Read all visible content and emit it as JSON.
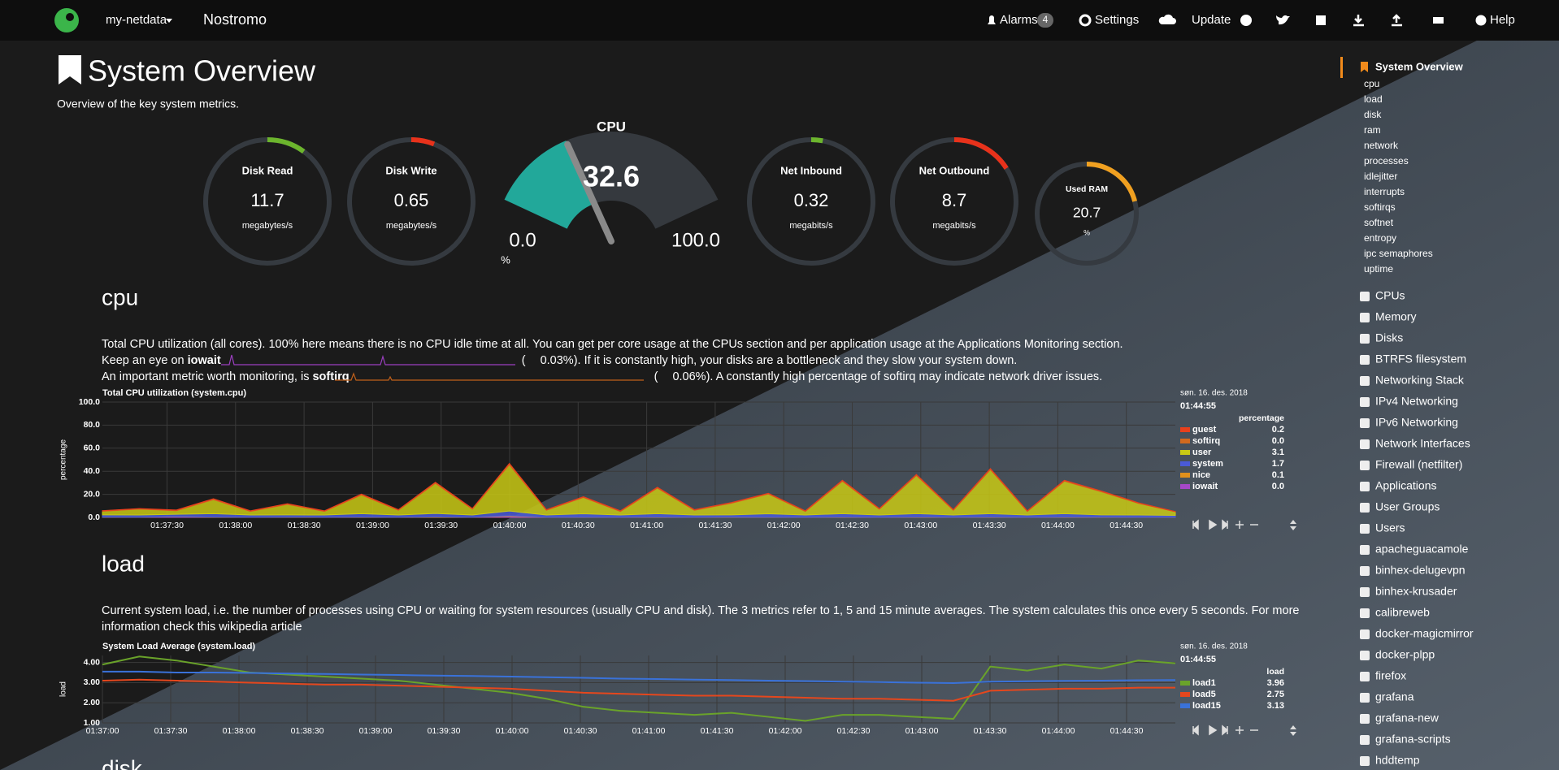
{
  "nav": {
    "brand": "my-netdata",
    "host": "Nostromo",
    "alarms": "Alarms",
    "alarm_count": "4",
    "settings": "Settings",
    "update": "Update",
    "help": "Help"
  },
  "header": {
    "title": "System Overview",
    "subtitle": "Overview of the key system metrics."
  },
  "gauges": [
    {
      "title": "Disk Read",
      "value": "11.7",
      "unit": "megabytes/s"
    },
    {
      "title": "Disk Write",
      "value": "0.65",
      "unit": "megabytes/s"
    },
    {
      "title": "Net Inbound",
      "value": "0.32",
      "unit": "megabits/s"
    },
    {
      "title": "Net Outbound",
      "value": "8.7",
      "unit": "megabits/s"
    },
    {
      "title": "Used RAM",
      "value": "20.7",
      "unit": "%"
    }
  ],
  "cpu_gauge": {
    "title": "CPU",
    "value": 32.6,
    "min": {
      "value": 0,
      "label": "0.0"
    },
    "max": {
      "value": 100,
      "label": "100.0"
    },
    "unit": "%"
  },
  "cpu_section": {
    "heading": "cpu",
    "line1": "Total CPU utilization (all cores). 100% here means there is no CPU idle time at all. You can get per core usage at the CPUs section and per application usage at the Applications Monitoring section.",
    "line2": {
      "pre": "Keep an eye on ",
      "key": "iowait",
      "open": "(",
      "value": "0.03%",
      "post": "). If it is constantly high, your disks are a bottleneck and they slow your system down."
    },
    "line3": {
      "pre": "An important metric worth monitoring, is ",
      "key": "softirq",
      "open": "(",
      "value": "0.06%",
      "post": "). A constantly high percentage of softirq may indicate network driver issues."
    }
  },
  "cpu_chart": {
    "type": "stacked-area",
    "title": "Total CPU utilization (system.cpu)",
    "ylabel": "percentage",
    "date": "søn. 16. des. 2018",
    "time": "01:44:55",
    "units": "percentage",
    "ylim": [
      0,
      100
    ],
    "yticks": [
      {
        "value": 0,
        "label": "0.0"
      },
      {
        "value": 20,
        "label": "20.0"
      },
      {
        "value": 40,
        "label": "40.0"
      },
      {
        "value": 60,
        "label": "60.0"
      },
      {
        "value": 80,
        "label": "80.0"
      },
      {
        "value": 100,
        "label": "100.0"
      }
    ],
    "xticks": [
      "01:37:30",
      "01:38:00",
      "01:38:30",
      "01:39:00",
      "01:39:30",
      "01:40:00",
      "01:40:30",
      "01:41:00",
      "01:41:30",
      "01:42:00",
      "01:42:30",
      "01:43:00",
      "01:43:30",
      "01:44:00",
      "01:44:30"
    ],
    "series": [
      {
        "name": "guest",
        "color": "#e8401c",
        "legend_value": "0.2",
        "values": [
          0.2,
          0.2,
          0.2,
          0.3,
          0.2,
          0.2,
          0.2,
          0.3,
          0.2,
          0.3,
          0.2,
          0.3,
          0.2,
          0.2,
          0.2,
          0.3,
          0.2,
          0.2,
          0.2,
          0.2,
          0.3,
          0.2,
          0.3,
          0.2,
          0.3,
          0.2,
          0.3,
          0.2,
          0.2,
          0.2
        ]
      },
      {
        "name": "softirq",
        "color": "#d2691e",
        "legend_value": "0.0",
        "values": [
          0.5,
          0.4,
          0.5,
          0.6,
          0.4,
          0.5,
          0.4,
          0.6,
          0.4,
          0.8,
          0.4,
          1,
          0.4,
          0.5,
          0.4,
          0.6,
          0.4,
          0.5,
          0.5,
          0.4,
          0.6,
          0.4,
          0.6,
          0.4,
          0.7,
          0.4,
          0.6,
          0.5,
          0.4,
          0
        ]
      },
      {
        "name": "user",
        "color": "#c9c914",
        "legend_value": "3.1",
        "values": [
          3,
          5,
          3,
          12,
          3,
          9,
          3,
          16,
          4,
          26,
          5,
          40,
          4,
          14,
          3,
          22,
          4,
          10,
          17,
          3,
          28,
          5,
          33,
          4,
          38,
          3,
          28,
          20,
          10,
          3.1
        ]
      },
      {
        "name": "system",
        "color": "#4a5ad8",
        "legend_value": "1.7",
        "values": [
          2,
          2,
          2,
          3,
          2,
          2,
          2,
          3,
          2,
          3,
          2,
          4,
          2,
          3,
          2,
          3,
          2,
          2,
          3,
          2,
          3,
          2,
          3,
          2,
          3,
          2,
          3,
          2,
          2,
          1.7
        ]
      },
      {
        "name": "nice",
        "color": "#e0901c",
        "legend_value": "0.1",
        "values": [
          0.2,
          0.1,
          0.2,
          0.3,
          0.1,
          0.2,
          0.1,
          0.3,
          0.1,
          0.4,
          0.1,
          0.5,
          0.1,
          0.2,
          0.1,
          0.3,
          0.1,
          0.2,
          0.2,
          0.1,
          0.3,
          0.1,
          0.3,
          0.1,
          0.3,
          0.1,
          0.3,
          0.2,
          0.1,
          0.1
        ]
      },
      {
        "name": "iowait",
        "color": "#a548c8",
        "legend_value": "0.0",
        "values": [
          0,
          0,
          0.5,
          0,
          0,
          0,
          0,
          0,
          0,
          0,
          0,
          1,
          0,
          0,
          0,
          0,
          0,
          0,
          0,
          0,
          0,
          0,
          0,
          0,
          0,
          0,
          0,
          0,
          0,
          0
        ]
      }
    ]
  },
  "load_section": {
    "heading": "load",
    "line1": "Current system load, i.e. the number of processes using CPU or waiting for system resources (usually CPU and disk). The 3 metrics refer to 1, 5 and 15 minute averages. The system calculates this once every 5 seconds. For more",
    "line2": "information check this wikipedia article"
  },
  "load_chart": {
    "type": "line",
    "title": "System Load Average (system.load)",
    "ylabel": "load",
    "date": "søn. 16. des. 2018",
    "time": "01:44:55",
    "units": "load",
    "ylim": [
      1,
      4.35
    ],
    "yticks": [
      {
        "value": 1,
        "label": "1.00"
      },
      {
        "value": 2,
        "label": "2.00"
      },
      {
        "value": 3,
        "label": "3.00"
      },
      {
        "value": 4,
        "label": "4.00"
      }
    ],
    "xticks": [
      "01:37:00",
      "01:37:30",
      "01:38:00",
      "01:38:30",
      "01:39:00",
      "01:39:30",
      "01:40:00",
      "01:40:30",
      "01:41:00",
      "01:41:30",
      "01:42:00",
      "01:42:30",
      "01:43:00",
      "01:43:30",
      "01:44:00",
      "01:44:30"
    ],
    "series": [
      {
        "name": "load1",
        "color": "#6aa32a",
        "legend_value": "3.96",
        "values": [
          3.9,
          4.3,
          4.1,
          3.8,
          3.5,
          3.4,
          3.3,
          3.2,
          3.1,
          2.9,
          2.7,
          2.5,
          2.2,
          1.8,
          1.6,
          1.5,
          1.4,
          1.5,
          1.3,
          1.1,
          1.4,
          1.4,
          1.3,
          1.2,
          3.8,
          3.6,
          3.9,
          3.7,
          4.1,
          3.96
        ]
      },
      {
        "name": "load5",
        "color": "#e5471d",
        "legend_value": "2.75",
        "values": [
          3.1,
          3.15,
          3.1,
          3.05,
          3,
          2.95,
          2.9,
          2.9,
          2.85,
          2.8,
          2.75,
          2.7,
          2.6,
          2.5,
          2.45,
          2.4,
          2.35,
          2.35,
          2.3,
          2.25,
          2.2,
          2.2,
          2.15,
          2.1,
          2.6,
          2.65,
          2.7,
          2.7,
          2.75,
          2.75
        ]
      },
      {
        "name": "load15",
        "color": "#3a72d9",
        "legend_value": "3.13",
        "values": [
          3.55,
          3.55,
          3.5,
          3.5,
          3.48,
          3.45,
          3.43,
          3.4,
          3.38,
          3.35,
          3.33,
          3.3,
          3.27,
          3.24,
          3.2,
          3.18,
          3.15,
          3.13,
          3.1,
          3.08,
          3.05,
          3.03,
          3,
          2.98,
          3.05,
          3.07,
          3.09,
          3.1,
          3.12,
          3.13
        ]
      }
    ]
  },
  "disk_section": {
    "heading": "disk"
  },
  "sidebar": {
    "active": "System Overview",
    "subitems": [
      "cpu",
      "load",
      "disk",
      "ram",
      "network",
      "processes",
      "idlejitter",
      "interrupts",
      "softirqs",
      "softnet",
      "entropy",
      "ipc semaphores",
      "uptime"
    ],
    "sections": [
      "CPUs",
      "Memory",
      "Disks",
      "BTRFS filesystem",
      "Networking Stack",
      "IPv4 Networking",
      "IPv6 Networking",
      "Network Interfaces",
      "Firewall (netfilter)",
      "Applications",
      "User Groups",
      "Users",
      "apacheguacamole",
      "binhex-delugevpn",
      "binhex-krusader",
      "calibreweb",
      "docker-magicmirror",
      "docker-plpp",
      "firefox",
      "grafana",
      "grafana-new",
      "grafana-scripts",
      "hddtemp"
    ]
  }
}
